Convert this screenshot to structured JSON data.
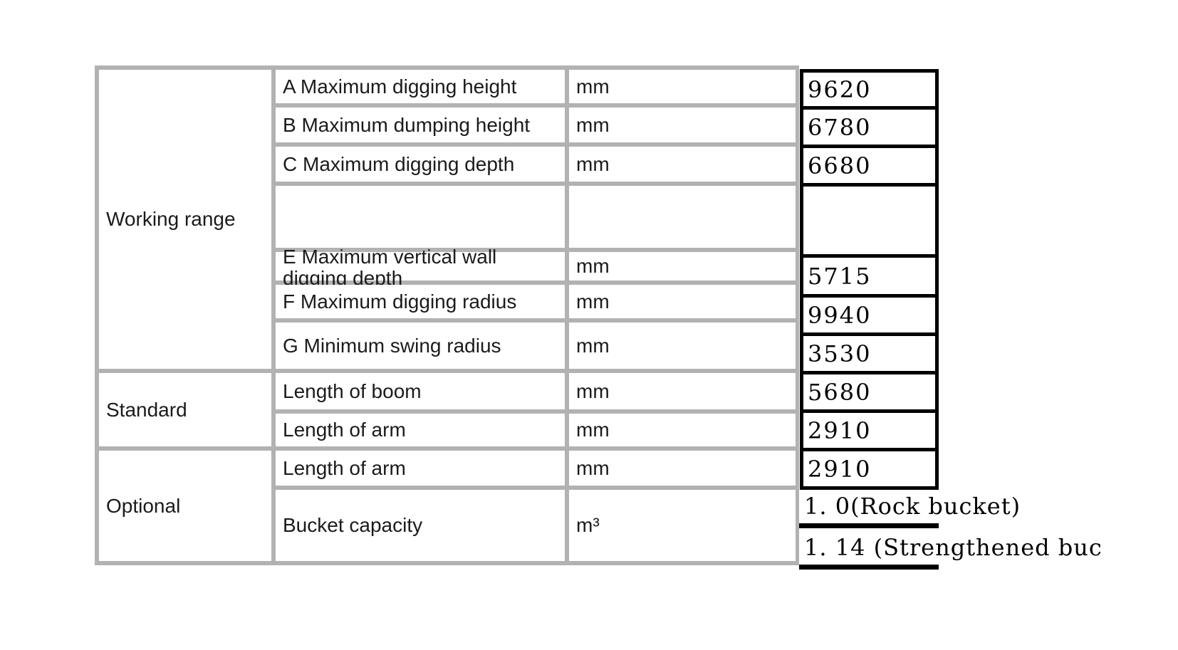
{
  "colors": {
    "grid_border": "#b2b2b2",
    "overlay_border": "#000000",
    "label_text": "#1b1b1b",
    "value_text": "#000000"
  },
  "table": {
    "sections": [
      {
        "category": "Working range",
        "rows": [
          {
            "param": "A Maximum digging height",
            "unit": "mm",
            "value": "9620"
          },
          {
            "param": "B Maximum dumping height",
            "unit": "mm",
            "value": "6780"
          },
          {
            "param": "C Maximum digging depth",
            "unit": "mm",
            "value": "6680"
          },
          {
            "param": "",
            "unit": "",
            "value": ""
          },
          {
            "param": "E Maximum vertical wall digging depth",
            "unit": "mm",
            "value": "5715"
          },
          {
            "param": "F Maximum digging radius",
            "unit": "mm",
            "value": "9940"
          },
          {
            "param": "G Minimum swing radius",
            "unit": "mm",
            "value": "3530"
          }
        ]
      },
      {
        "category": "Standard",
        "rows": [
          {
            "param": "Length of boom",
            "unit": "mm",
            "value": "5680"
          },
          {
            "param": "Length of arm",
            "unit": "mm",
            "value": "2910"
          }
        ]
      },
      {
        "category": "Optional",
        "rows": [
          {
            "param": "Length of arm",
            "unit": "mm",
            "value": "2910"
          },
          {
            "param": "Bucket capacity",
            "unit": "m³",
            "value_lines": [
              "1. 0(Rock bucket)",
              "1. 14 (Strengthened buc"
            ]
          }
        ]
      }
    ]
  }
}
